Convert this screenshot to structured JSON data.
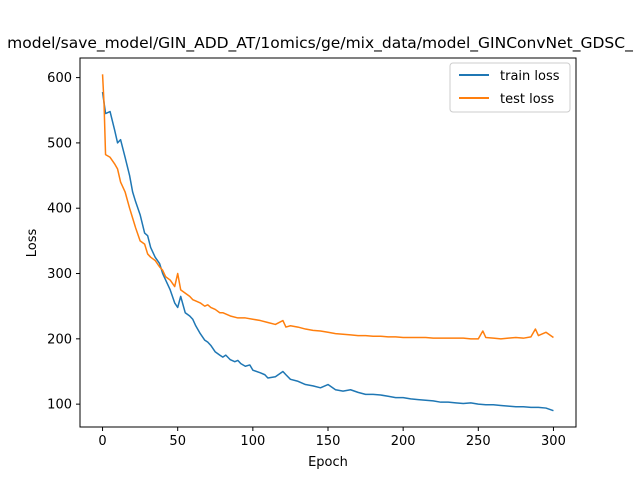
{
  "chart_data": {
    "type": "line",
    "title": "model/save_model/GIN_ADD_AT/1omics/ge/mix_data/model_GINConvNet_GDSC_",
    "xlabel": "Epoch",
    "ylabel": "Loss",
    "xlim": [
      -15,
      315
    ],
    "ylim": [
      65,
      630
    ],
    "xticks": [
      0,
      50,
      100,
      150,
      200,
      250,
      300
    ],
    "yticks": [
      100,
      200,
      300,
      400,
      500,
      600
    ],
    "grid": false,
    "legend_position": "top-right",
    "series": [
      {
        "name": "train loss",
        "color": "#1f77b4",
        "x": [
          0,
          2,
          5,
          8,
          10,
          12,
          15,
          18,
          20,
          22,
          25,
          28,
          30,
          32,
          35,
          38,
          40,
          42,
          45,
          48,
          50,
          52,
          55,
          58,
          60,
          62,
          65,
          68,
          70,
          72,
          75,
          78,
          80,
          82,
          85,
          88,
          90,
          92,
          95,
          98,
          100,
          105,
          108,
          110,
          115,
          120,
          122,
          125,
          130,
          135,
          140,
          145,
          150,
          155,
          160,
          165,
          170,
          175,
          180,
          185,
          190,
          195,
          200,
          205,
          210,
          215,
          220,
          225,
          230,
          235,
          240,
          245,
          250,
          255,
          260,
          265,
          270,
          275,
          280,
          285,
          290,
          295,
          300
        ],
        "y": [
          578,
          545,
          548,
          520,
          500,
          505,
          478,
          450,
          425,
          410,
          390,
          362,
          358,
          340,
          325,
          315,
          300,
          290,
          275,
          255,
          248,
          265,
          240,
          235,
          230,
          220,
          208,
          198,
          195,
          190,
          180,
          175,
          172,
          175,
          168,
          165,
          167,
          162,
          158,
          160,
          152,
          148,
          145,
          140,
          142,
          150,
          145,
          138,
          135,
          130,
          128,
          125,
          130,
          122,
          120,
          122,
          118,
          115,
          115,
          114,
          112,
          110,
          110,
          108,
          107,
          106,
          105,
          103,
          103,
          102,
          101,
          102,
          100,
          99,
          99,
          98,
          97,
          96,
          96,
          95,
          95,
          94,
          90
        ]
      },
      {
        "name": "test loss",
        "color": "#ff7f0e",
        "x": [
          0,
          1,
          2,
          5,
          8,
          10,
          12,
          15,
          18,
          20,
          22,
          25,
          28,
          30,
          32,
          35,
          38,
          40,
          42,
          45,
          48,
          50,
          52,
          55,
          58,
          60,
          62,
          65,
          68,
          70,
          72,
          75,
          78,
          80,
          85,
          90,
          95,
          100,
          105,
          110,
          115,
          120,
          122,
          125,
          130,
          135,
          140,
          145,
          150,
          155,
          160,
          165,
          170,
          175,
          180,
          185,
          190,
          195,
          200,
          205,
          210,
          215,
          220,
          225,
          230,
          235,
          240,
          245,
          250,
          253,
          255,
          260,
          265,
          270,
          275,
          280,
          285,
          288,
          290,
          295,
          300
        ],
        "y": [
          605,
          560,
          482,
          478,
          468,
          460,
          440,
          425,
          400,
          385,
          370,
          350,
          345,
          330,
          325,
          320,
          310,
          305,
          295,
          290,
          280,
          300,
          275,
          270,
          265,
          260,
          258,
          255,
          250,
          252,
          248,
          245,
          240,
          240,
          235,
          232,
          232,
          230,
          228,
          225,
          222,
          228,
          218,
          220,
          218,
          215,
          213,
          212,
          210,
          208,
          207,
          206,
          205,
          205,
          204,
          204,
          203,
          203,
          202,
          202,
          202,
          202,
          201,
          201,
          201,
          201,
          201,
          200,
          200,
          212,
          202,
          201,
          200,
          201,
          202,
          201,
          203,
          215,
          205,
          210,
          202
        ]
      }
    ]
  }
}
